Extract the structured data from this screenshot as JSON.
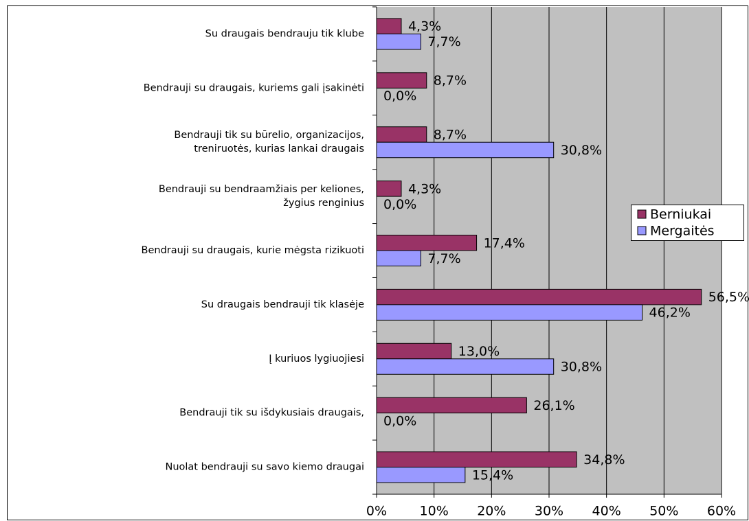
{
  "chart_data": {
    "type": "bar",
    "orientation": "horizontal",
    "categories": [
      "Su draugais bendrauju tik klube",
      "Bendrauji su draugais, kuriems gali įsakinėti",
      "Bendrauji tik su būrelio, organizacijos,\ntreniruotės, kurias lankai draugais",
      "Bendrauji su bendraamžiais per keliones,\nžygius renginius",
      "Bendrauji su draugais, kurie mėgsta rizikuoti",
      "Su draugais bendrauji tik klasėje",
      "Į kuriuos lygiuojiesi",
      "Bendrauji tik su išdykusiais draugais,",
      "Nuolat bendrauji su savo kiemo draugai"
    ],
    "series": [
      {
        "name": "Berniukai",
        "color": "#993366",
        "values": [
          4.3,
          8.7,
          8.7,
          4.3,
          17.4,
          56.5,
          13.0,
          26.1,
          34.8
        ],
        "value_labels": [
          "4,3%",
          "8,7%",
          "8,7%",
          "4,3%",
          "17,4%",
          "56,5%",
          "13,0%",
          "26,1%",
          "34,8%"
        ]
      },
      {
        "name": "Mergaitės",
        "color": "#9999ff",
        "values": [
          7.7,
          0.0,
          30.8,
          0.0,
          7.7,
          46.2,
          30.8,
          0.0,
          15.4
        ],
        "value_labels": [
          "7,7%",
          "0,0%",
          "30,8%",
          "0,0%",
          "7,7%",
          "46,2%",
          "30,8%",
          "0,0%",
          "15,4%"
        ]
      }
    ],
    "xlim": [
      0,
      60
    ],
    "xticks": [
      {
        "value": 0,
        "label": "0%"
      },
      {
        "value": 10,
        "label": "10%"
      },
      {
        "value": 20,
        "label": "20%"
      },
      {
        "value": 30,
        "label": "30%"
      },
      {
        "value": 40,
        "label": "40%"
      },
      {
        "value": 50,
        "label": "50%"
      },
      {
        "value": 60,
        "label": "60%"
      }
    ],
    "grid": true,
    "legend": "right"
  }
}
